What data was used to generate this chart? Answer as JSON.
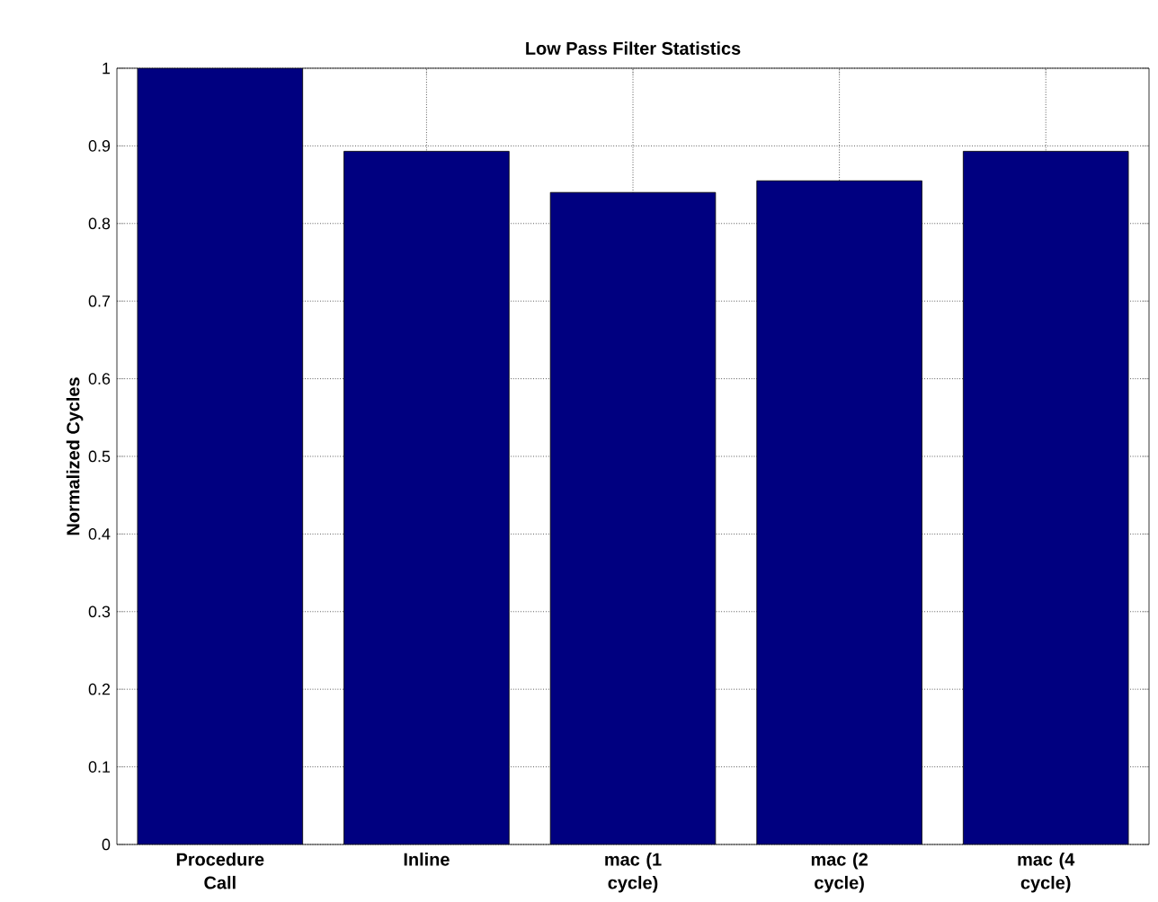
{
  "chart_data": {
    "type": "bar",
    "title": "Low Pass Filter Statistics",
    "ylabel": "Normalized Cycles",
    "categories": [
      "Procedure Call",
      "Inline",
      "mac (1 cycle)",
      "mac (2 cycle)",
      "mac (4 cycle)"
    ],
    "values": [
      1.0,
      0.893,
      0.84,
      0.855,
      0.893
    ],
    "color": "#000080",
    "ylim": [
      0,
      1
    ],
    "yticks": [
      0,
      0.1,
      0.2,
      0.3,
      0.4,
      0.5,
      0.6,
      0.7,
      0.8,
      0.9,
      1
    ],
    "grid": true
  }
}
